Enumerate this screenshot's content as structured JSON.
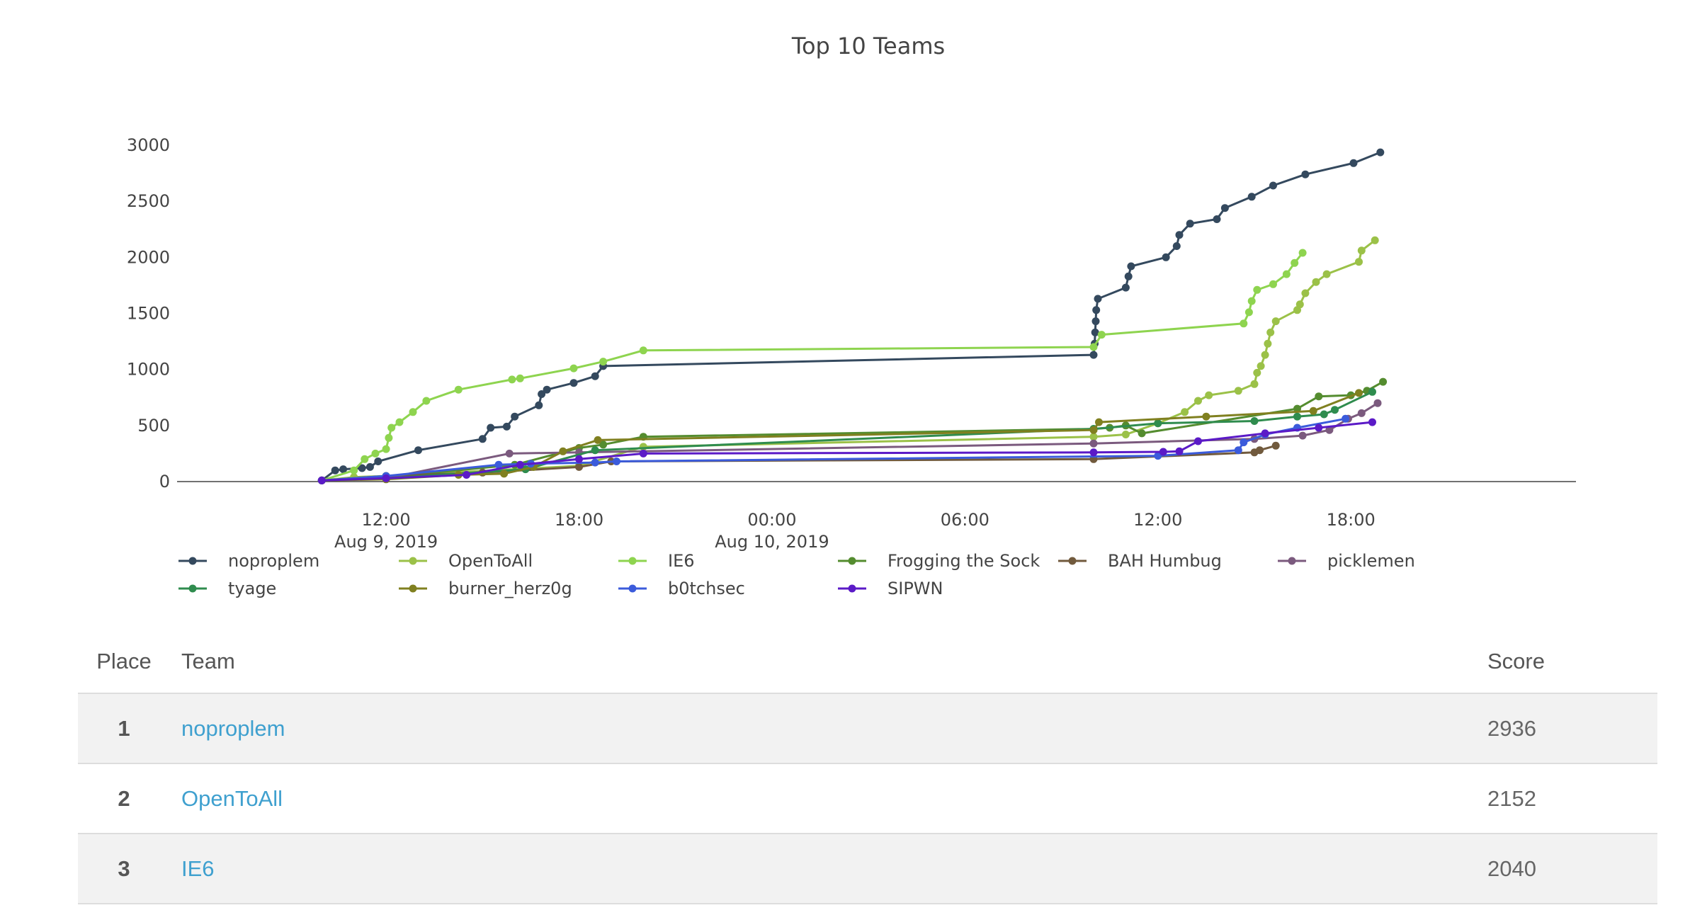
{
  "chart_data": {
    "type": "line",
    "title": "Top 10 Teams",
    "xlabel": "",
    "ylabel": "",
    "ylim": [
      0,
      3000
    ],
    "yticks": [
      0,
      500,
      1000,
      1500,
      2000,
      2500,
      3000
    ],
    "xlim": [
      "2019-08-09 05:30",
      "2019-08-11 01:00"
    ],
    "xticks": [
      {
        "t": "2019-08-09 12:00",
        "line1": "12:00",
        "line2": "Aug 9, 2019"
      },
      {
        "t": "2019-08-09 18:00",
        "line1": "18:00",
        "line2": ""
      },
      {
        "t": "2019-08-10 00:00",
        "line1": "00:00",
        "line2": "Aug 10, 2019"
      },
      {
        "t": "2019-08-10 06:00",
        "line1": "06:00",
        "line2": ""
      },
      {
        "t": "2019-08-10 12:00",
        "line1": "12:00",
        "line2": ""
      },
      {
        "t": "2019-08-10 18:00",
        "line1": "18:00",
        "line2": ""
      }
    ],
    "grid": false,
    "legend_position": "bottom",
    "series": [
      {
        "name": "noproplem",
        "color": "#34495e",
        "points": [
          [
            "2019-08-09 10:00",
            10
          ],
          [
            "2019-08-09 10:25",
            100
          ],
          [
            "2019-08-09 10:40",
            110
          ],
          [
            "2019-08-09 11:15",
            120
          ],
          [
            "2019-08-09 11:30",
            130
          ],
          [
            "2019-08-09 11:45",
            180
          ],
          [
            "2019-08-09 13:00",
            280
          ],
          [
            "2019-08-09 15:00",
            380
          ],
          [
            "2019-08-09 15:15",
            480
          ],
          [
            "2019-08-09 15:45",
            490
          ],
          [
            "2019-08-09 16:00",
            580
          ],
          [
            "2019-08-09 16:45",
            680
          ],
          [
            "2019-08-09 16:50",
            780
          ],
          [
            "2019-08-09 17:00",
            820
          ],
          [
            "2019-08-09 17:50",
            880
          ],
          [
            "2019-08-09 18:30",
            940
          ],
          [
            "2019-08-09 18:45",
            1030
          ],
          [
            "2019-08-10 10:00",
            1130
          ],
          [
            "2019-08-10 10:02",
            1230
          ],
          [
            "2019-08-10 10:03",
            1330
          ],
          [
            "2019-08-10 10:04",
            1430
          ],
          [
            "2019-08-10 10:05",
            1530
          ],
          [
            "2019-08-10 10:08",
            1630
          ],
          [
            "2019-08-10 11:00",
            1730
          ],
          [
            "2019-08-10 11:05",
            1830
          ],
          [
            "2019-08-10 11:10",
            1920
          ],
          [
            "2019-08-10 12:15",
            2000
          ],
          [
            "2019-08-10 12:35",
            2100
          ],
          [
            "2019-08-10 12:40",
            2200
          ],
          [
            "2019-08-10 13:00",
            2300
          ],
          [
            "2019-08-10 13:50",
            2340
          ],
          [
            "2019-08-10 14:05",
            2440
          ],
          [
            "2019-08-10 14:55",
            2540
          ],
          [
            "2019-08-10 15:35",
            2640
          ],
          [
            "2019-08-10 16:35",
            2740
          ],
          [
            "2019-08-10 18:05",
            2840
          ],
          [
            "2019-08-10 18:55",
            2936
          ]
        ]
      },
      {
        "name": "OpenToAll",
        "color": "#9bc148",
        "points": [
          [
            "2019-08-09 10:00",
            10
          ],
          [
            "2019-08-09 11:00",
            40
          ],
          [
            "2019-08-09 12:00",
            50
          ],
          [
            "2019-08-09 18:00",
            140
          ],
          [
            "2019-08-09 20:00",
            310
          ],
          [
            "2019-08-10 10:00",
            400
          ],
          [
            "2019-08-10 11:00",
            420
          ],
          [
            "2019-08-10 12:00",
            520
          ],
          [
            "2019-08-10 12:50",
            620
          ],
          [
            "2019-08-10 13:15",
            720
          ],
          [
            "2019-08-10 13:35",
            770
          ],
          [
            "2019-08-10 14:30",
            810
          ],
          [
            "2019-08-10 15:00",
            870
          ],
          [
            "2019-08-10 15:05",
            970
          ],
          [
            "2019-08-10 15:12",
            1030
          ],
          [
            "2019-08-10 15:20",
            1130
          ],
          [
            "2019-08-10 15:25",
            1230
          ],
          [
            "2019-08-10 15:30",
            1330
          ],
          [
            "2019-08-10 15:40",
            1430
          ],
          [
            "2019-08-10 16:20",
            1530
          ],
          [
            "2019-08-10 16:25",
            1580
          ],
          [
            "2019-08-10 16:35",
            1680
          ],
          [
            "2019-08-10 16:55",
            1780
          ],
          [
            "2019-08-10 17:15",
            1850
          ],
          [
            "2019-08-10 18:15",
            1960
          ],
          [
            "2019-08-10 18:20",
            2060
          ],
          [
            "2019-08-10 18:45",
            2152
          ]
        ]
      },
      {
        "name": "IE6",
        "color": "#8ed44f",
        "points": [
          [
            "2019-08-09 10:00",
            10
          ],
          [
            "2019-08-09 11:00",
            100
          ],
          [
            "2019-08-09 11:20",
            200
          ],
          [
            "2019-08-09 11:40",
            250
          ],
          [
            "2019-08-09 12:00",
            290
          ],
          [
            "2019-08-09 12:05",
            390
          ],
          [
            "2019-08-09 12:10",
            480
          ],
          [
            "2019-08-09 12:25",
            530
          ],
          [
            "2019-08-09 12:50",
            620
          ],
          [
            "2019-08-09 13:15",
            720
          ],
          [
            "2019-08-09 14:15",
            820
          ],
          [
            "2019-08-09 15:55",
            910
          ],
          [
            "2019-08-09 16:10",
            920
          ],
          [
            "2019-08-09 17:50",
            1010
          ],
          [
            "2019-08-09 18:45",
            1070
          ],
          [
            "2019-08-09 20:00",
            1170
          ],
          [
            "2019-08-10 10:00",
            1200
          ],
          [
            "2019-08-10 10:15",
            1310
          ],
          [
            "2019-08-10 14:40",
            1410
          ],
          [
            "2019-08-10 14:50",
            1510
          ],
          [
            "2019-08-10 14:55",
            1610
          ],
          [
            "2019-08-10 15:05",
            1710
          ],
          [
            "2019-08-10 15:35",
            1760
          ],
          [
            "2019-08-10 16:00",
            1850
          ],
          [
            "2019-08-10 16:15",
            1950
          ],
          [
            "2019-08-10 16:30",
            2040
          ]
        ]
      },
      {
        "name": "Frogging the Sock",
        "color": "#548c2f",
        "points": [
          [
            "2019-08-09 10:00",
            10
          ],
          [
            "2019-08-09 12:00",
            40
          ],
          [
            "2019-08-09 16:00",
            150
          ],
          [
            "2019-08-09 18:00",
            300
          ],
          [
            "2019-08-09 18:45",
            330
          ],
          [
            "2019-08-09 20:00",
            400
          ],
          [
            "2019-08-10 10:00",
            470
          ],
          [
            "2019-08-10 10:30",
            480
          ],
          [
            "2019-08-10 11:00",
            500
          ],
          [
            "2019-08-10 11:30",
            430
          ],
          [
            "2019-08-10 16:20",
            650
          ],
          [
            "2019-08-10 17:00",
            760
          ],
          [
            "2019-08-10 18:00",
            770
          ],
          [
            "2019-08-10 18:30",
            810
          ],
          [
            "2019-08-10 19:00",
            890
          ]
        ]
      },
      {
        "name": "BAH Humbug",
        "color": "#715a3d",
        "points": [
          [
            "2019-08-09 10:00",
            10
          ],
          [
            "2019-08-09 12:00",
            50
          ],
          [
            "2019-08-09 15:00",
            80
          ],
          [
            "2019-08-09 18:00",
            130
          ],
          [
            "2019-08-09 19:00",
            180
          ],
          [
            "2019-08-10 10:00",
            200
          ],
          [
            "2019-08-10 15:00",
            260
          ],
          [
            "2019-08-10 15:10",
            280
          ],
          [
            "2019-08-10 15:40",
            320
          ]
        ]
      },
      {
        "name": "picklemen",
        "color": "#7b5a7e",
        "points": [
          [
            "2019-08-09 10:00",
            10
          ],
          [
            "2019-08-09 12:00",
            30
          ],
          [
            "2019-08-09 15:50",
            250
          ],
          [
            "2019-08-09 18:00",
            260
          ],
          [
            "2019-08-10 10:00",
            340
          ],
          [
            "2019-08-10 15:00",
            380
          ],
          [
            "2019-08-10 16:30",
            410
          ],
          [
            "2019-08-10 17:20",
            460
          ],
          [
            "2019-08-10 17:55",
            560
          ],
          [
            "2019-08-10 18:20",
            610
          ],
          [
            "2019-08-10 18:50",
            700
          ]
        ]
      },
      {
        "name": "tyage",
        "color": "#2f8c4e",
        "points": [
          [
            "2019-08-09 10:00",
            10
          ],
          [
            "2019-08-09 12:00",
            30
          ],
          [
            "2019-08-09 16:20",
            110
          ],
          [
            "2019-08-09 18:30",
            280
          ],
          [
            "2019-08-10 10:00",
            470
          ],
          [
            "2019-08-10 12:00",
            520
          ],
          [
            "2019-08-10 15:00",
            540
          ],
          [
            "2019-08-10 16:20",
            580
          ],
          [
            "2019-08-10 17:10",
            600
          ],
          [
            "2019-08-10 17:30",
            640
          ],
          [
            "2019-08-10 18:40",
            800
          ]
        ]
      },
      {
        "name": "burner_herz0g",
        "color": "#808020",
        "points": [
          [
            "2019-08-09 10:00",
            10
          ],
          [
            "2019-08-09 12:00",
            20
          ],
          [
            "2019-08-09 14:15",
            60
          ],
          [
            "2019-08-09 15:40",
            70
          ],
          [
            "2019-08-09 16:35",
            130
          ],
          [
            "2019-08-09 17:30",
            270
          ],
          [
            "2019-08-09 18:35",
            370
          ],
          [
            "2019-08-10 10:00",
            460
          ],
          [
            "2019-08-10 10:10",
            530
          ],
          [
            "2019-08-10 13:30",
            580
          ],
          [
            "2019-08-10 16:50",
            630
          ],
          [
            "2019-08-10 18:15",
            790
          ]
        ]
      },
      {
        "name": "b0tchsec",
        "color": "#3b5bdb",
        "points": [
          [
            "2019-08-09 10:00",
            10
          ],
          [
            "2019-08-09 12:00",
            50
          ],
          [
            "2019-08-09 15:30",
            150
          ],
          [
            "2019-08-09 16:30",
            160
          ],
          [
            "2019-08-09 18:30",
            170
          ],
          [
            "2019-08-09 19:10",
            180
          ],
          [
            "2019-08-10 12:00",
            230
          ],
          [
            "2019-08-10 14:30",
            280
          ],
          [
            "2019-08-10 14:40",
            350
          ],
          [
            "2019-08-10 15:20",
            420
          ],
          [
            "2019-08-10 16:20",
            480
          ],
          [
            "2019-08-10 17:50",
            560
          ]
        ]
      },
      {
        "name": "SIPWN",
        "color": "#5b1ac7",
        "points": [
          [
            "2019-08-09 10:00",
            10
          ],
          [
            "2019-08-09 12:00",
            30
          ],
          [
            "2019-08-09 14:30",
            60
          ],
          [
            "2019-08-09 16:10",
            150
          ],
          [
            "2019-08-09 18:00",
            200
          ],
          [
            "2019-08-09 20:00",
            250
          ],
          [
            "2019-08-10 10:00",
            260
          ],
          [
            "2019-08-10 12:10",
            265
          ],
          [
            "2019-08-10 12:40",
            270
          ],
          [
            "2019-08-10 13:15",
            360
          ],
          [
            "2019-08-10 15:20",
            430
          ],
          [
            "2019-08-10 17:00",
            480
          ],
          [
            "2019-08-10 18:40",
            530
          ]
        ]
      }
    ]
  },
  "scoreboard": {
    "headers": {
      "place": "Place",
      "team": "Team",
      "score": "Score"
    },
    "rows": [
      {
        "place": "1",
        "team": "noproplem",
        "score": "2936"
      },
      {
        "place": "2",
        "team": "OpenToAll",
        "score": "2152"
      },
      {
        "place": "3",
        "team": "IE6",
        "score": "2040"
      }
    ]
  }
}
